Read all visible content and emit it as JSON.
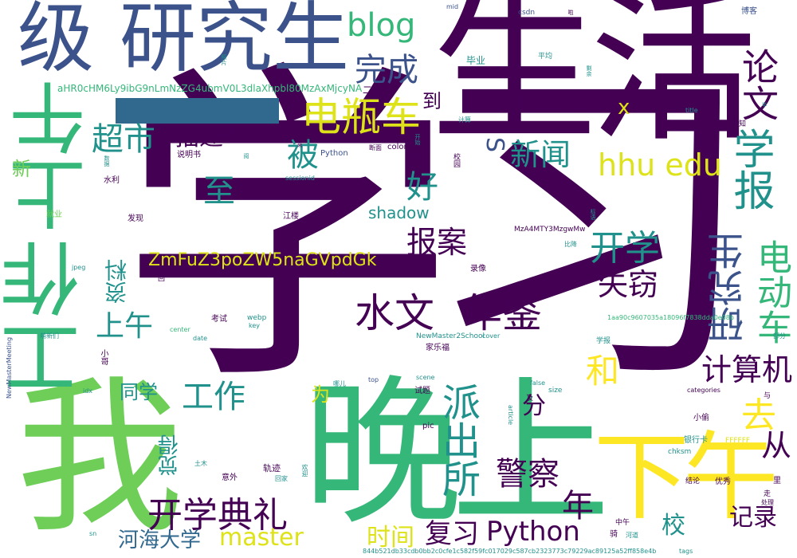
{
  "palette": {
    "purple": "#440154",
    "indigo": "#3b528b",
    "blue": "#31688e",
    "teal": "#21918c",
    "green": "#35b779",
    "lime": "#6ece58",
    "yellowgreen": "#90d743",
    "yellow": "#dde318",
    "bright_yellow": "#fde725",
    "background": "#ffffff"
  },
  "words": {
    "xuexi": "学习",
    "shenghuo": "生活",
    "wanshang": "晚上",
    "wo": "我",
    "gongzuo_big": "工作",
    "shangwu_big": "上午",
    "ji": "级",
    "yanjiusheng": "研究生",
    "xiawu": "下午",
    "dianpingche": "电瓶车",
    "lunwen": "论文",
    "xuebao": "学报",
    "blog": "blog",
    "wancheng": "完成",
    "hhu_edu": "hhu edu",
    "xinwen": "新闻",
    "shuiwen": "水文",
    "nianjian": "年鉴",
    "paichusuo": "派出所",
    "kaixuediangli": "开学典礼",
    "yanjiusheng_v": "研究生",
    "diandongche": "电动车",
    "kaixue": "开学",
    "shiqie": "失窃",
    "baoan": "报案",
    "jingcha": "警察",
    "python_big": "Python",
    "master": "master",
    "hehai": "河海大学",
    "fuxi": "复习",
    "shijian": "时间",
    "jiaoxiao": "校",
    "jilu": "记录",
    "nian": "年",
    "jisuanji": "计算机",
    "qu": "去",
    "cong": "从",
    "he": "和",
    "fen": "分",
    "gongzuo_mid": "工作",
    "tongxue": "同学",
    "juede": "觉得",
    "wei": "为",
    "shangwu_mid": "上午",
    "ziliao": "资料",
    "zmfu": "ZmFuZ3poZW5naGVpdGk",
    "shadow": "shadow",
    "hao": "好",
    "zhi": "至",
    "bei": "被",
    "miaoshu": "描述",
    "chaoshi": "超市",
    "rizhi": "日志",
    "xie": "写",
    "dao": "到",
    "s": "S",
    "x": "x",
    "text": "text",
    "xin": "新",
    "ahr0": "aHR0cHM6Ly9ibG9nLmNzZG4ubmV0L3dlaXhpbl80MzAxMjcyNA",
    "erji": "二级",
    "biye": "毕业",
    "pingjun": "平均",
    "csdn": "csdn",
    "mid": "mid",
    "boke": "博客",
    "jisuan": "计算",
    "title": "title",
    "gaozhi": "告知",
    "jiankong": "监控",
    "python_small": "Python",
    "color": "color",
    "guihua": "桂花",
    "duanmian": "断面",
    "shuomingshu": "说明书",
    "sessionid": "sessionid",
    "shuili": "水利",
    "jiuye": "就业",
    "faxian": "发现",
    "jianglou": "江楼",
    "mza4": "MzA4MTY3MzgwMw",
    "luxiang": "录像",
    "bijiang": "比降",
    "jpeg": "jpeg",
    "zhaohui": "找回",
    "kaoshi": "考试",
    "webp": "webp",
    "center": "center",
    "key": "key",
    "date": "date",
    "newmaster2school": "NewMaster2School",
    "jialefu": "家乐福",
    "cover": "cover",
    "xuebao_small": "学报",
    "hash_1aa9": "1aa90c9607035a18096f7838dda0e08b",
    "bufen": "部分",
    "xiaosi": "小哥",
    "mengxinmen": "萌新们",
    "idx": "idx",
    "newmastermeeting": "NewMasterMeeting",
    "nali": "哪儿",
    "top": "top",
    "scene": "scene",
    "false": "false",
    "categories": "categories",
    "yu": "与",
    "shiti": "试题",
    "ji_small": "及",
    "article": "article",
    "size": "size",
    "pic": "pic",
    "xiaotou": "小偷",
    "yinhangka": "银行卡",
    "ffffff": "FFFFFF",
    "tumu": "土木",
    "yiwai": "意外",
    "guiji": "轨迹",
    "huanying": "欢迎",
    "huijia": "回家",
    "chksm": "chksm",
    "jielun": "结论",
    "youxiu": "优秀",
    "zou": "走",
    "li": "里",
    "chuli": "处理",
    "zhongwu": "中午",
    "qi": "骑",
    "hedao": "河道",
    "sn": "sn",
    "hash_844b": "844b521db33cdb0bb2c0cfe1c582f59fc017029c587cb2323773c79229ac89125a52ff858e4b",
    "tags": "tags",
    "ban": "半",
    "shengyu": "剩余",
    "kaishi": "开始",
    "xiaoyuan": "校园",
    "lai": "来",
    "yue": "阅",
    "zhaopian": "照片",
    "biaoyu": "标语",
    "ji_tiny": "啦",
    "shuju": "数据"
  }
}
